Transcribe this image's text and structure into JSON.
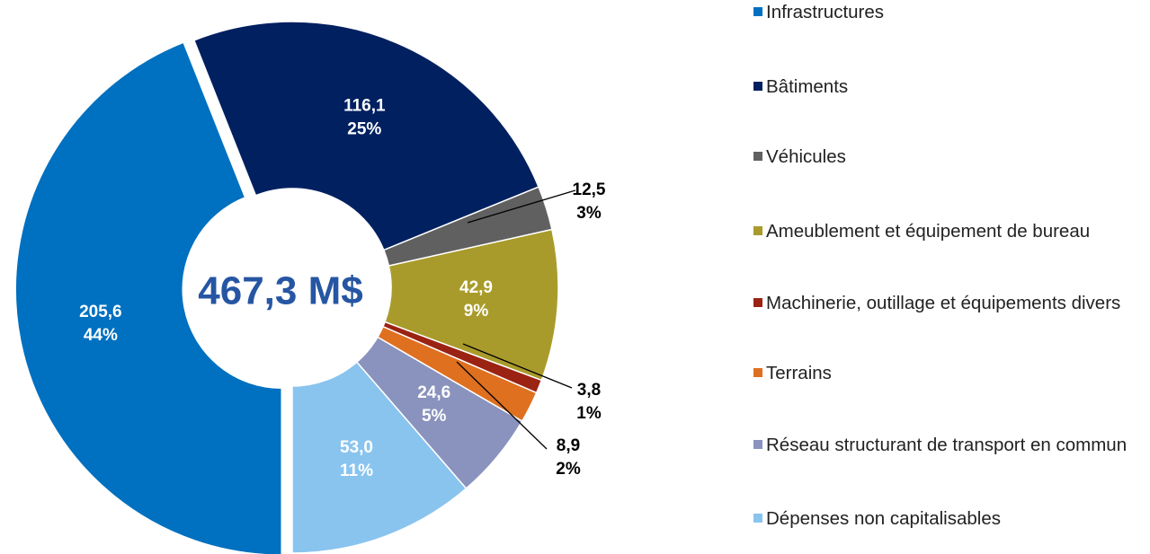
{
  "chart_data": {
    "type": "donut",
    "center_label": "467,3 M$",
    "categories": [
      "Infrastructures",
      "Bâtiments",
      "Véhicules",
      "Ameublement et équipement de bureau",
      "Machinerie, outillage et équipements divers",
      "Terrains",
      "Réseau structurant de transport en commun",
      "Dépenses non capitalisables"
    ],
    "values": [
      205.6,
      116.1,
      12.5,
      42.9,
      3.8,
      8.9,
      24.6,
      53.0
    ],
    "value_labels": [
      "205,6",
      "116,1",
      "12,5",
      "42,9",
      "3,8",
      "8,9",
      "24,6",
      "53,0"
    ],
    "percents": [
      44,
      25,
      3,
      9,
      1,
      2,
      5,
      11
    ],
    "percent_labels": [
      "44%",
      "25%",
      "3%",
      "9%",
      "1%",
      "2%",
      "5%",
      "11%"
    ],
    "colors": [
      "#0070c0",
      "#002060",
      "#606060",
      "#a99b2b",
      "#9b2314",
      "#de7020",
      "#8a93bd",
      "#89c4ef"
    ]
  }
}
